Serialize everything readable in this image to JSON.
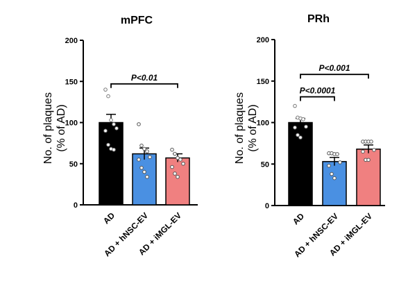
{
  "chart_data": [
    {
      "type": "bar",
      "title": "mPFC",
      "ylabel_line1": "No. of plaques",
      "ylabel_line2": "(% of AD)",
      "ylim": [
        0,
        200
      ],
      "yticks": [
        0,
        50,
        100,
        150,
        200
      ],
      "categories": [
        "AD",
        "AD + hNSC-EV",
        "AD + iMGL-EV"
      ],
      "values": [
        100,
        62,
        57
      ],
      "errors": [
        10,
        7,
        5
      ],
      "colors": [
        "#000000",
        "#4a90e2",
        "#f08080"
      ],
      "points": [
        [
          140,
          132,
          103,
          98,
          93,
          90,
          73,
          68,
          67
        ],
        [
          98,
          72,
          68,
          65,
          58,
          55,
          45,
          40,
          34
        ],
        [
          67,
          62,
          57,
          55,
          50,
          46,
          38,
          34
        ]
      ],
      "comparisons": [
        {
          "from": 0,
          "to": 2,
          "y": 147,
          "label": "P<0.01"
        }
      ]
    },
    {
      "type": "bar",
      "title": "PRh",
      "ylabel_line1": "No. of plaques",
      "ylabel_line2": "(% of AD)",
      "ylim": [
        0,
        200
      ],
      "yticks": [
        0,
        50,
        100,
        150,
        200
      ],
      "categories": [
        "AD",
        "AD + hNSC-EV",
        "AD + iMGL-EV"
      ],
      "values": [
        100,
        53,
        68
      ],
      "errors": [
        5,
        5,
        5
      ],
      "colors": [
        "#000000",
        "#4a90e2",
        "#f08080"
      ],
      "points": [
        [
          120,
          106,
          105,
          104,
          95,
          94,
          85,
          82
        ],
        [
          63,
          63,
          62,
          62,
          52,
          48,
          38,
          33
        ],
        [
          77,
          77,
          77,
          77,
          67,
          65,
          55,
          55
        ]
      ],
      "comparisons": [
        {
          "from": 0,
          "to": 1,
          "y": 131,
          "label": "P<0.0001"
        },
        {
          "from": 0,
          "to": 2,
          "y": 158,
          "label": "P<0.001"
        }
      ]
    }
  ]
}
